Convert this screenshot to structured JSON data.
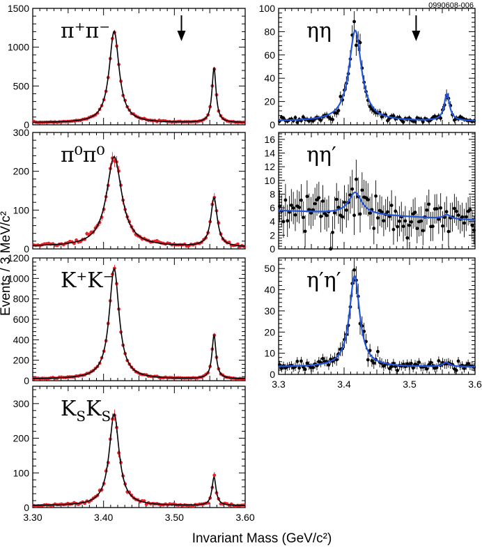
{
  "figure_id": "0990608-006",
  "xlabel": "Invariant Mass (GeV/c²)",
  "ylabel": "Events / 3 MeV/c²",
  "chart_data": [
    {
      "type": "scatter",
      "label": "π⁺π⁻",
      "xlim": [
        3.3,
        3.6
      ],
      "ylim": [
        0,
        1500
      ],
      "yticks": [
        0,
        500,
        1000,
        1500
      ],
      "xticks": [],
      "data_color": "#e8202a",
      "fit_color": "#000000",
      "arrow_x": 3.51,
      "peaks": [
        {
          "center": 3.415,
          "height": 1180,
          "width": 0.0085
        },
        {
          "center": 3.556,
          "height": 700,
          "width": 0.0035
        }
      ],
      "background": [
        25,
        25
      ]
    },
    {
      "type": "scatter",
      "label": "π⁰π⁰",
      "xlim": [
        3.3,
        3.6
      ],
      "ylim": [
        0,
        300
      ],
      "yticks": [
        0,
        100,
        200,
        300
      ],
      "xticks": [],
      "data_color": "#e8202a",
      "fit_color": "#000000",
      "peaks": [
        {
          "center": 3.415,
          "height": 232,
          "width": 0.013
        },
        {
          "center": 3.556,
          "height": 126,
          "width": 0.0055
        }
      ],
      "background": [
        6,
        4
      ]
    },
    {
      "type": "scatter",
      "label": "K⁺K⁻",
      "xlim": [
        3.3,
        3.6
      ],
      "ylim": [
        0,
        1200
      ],
      "yticks": [
        0,
        200,
        400,
        600,
        800,
        1000,
        1200
      ],
      "xticks": [],
      "data_color": "#e8202a",
      "fit_color": "#000000",
      "peaks": [
        {
          "center": 3.415,
          "height": 1080,
          "width": 0.0085
        },
        {
          "center": 3.556,
          "height": 425,
          "width": 0.0035
        }
      ],
      "background": [
        15,
        15
      ]
    },
    {
      "type": "scatter",
      "label": "KSKS",
      "label_main": "K",
      "label_sub": "S",
      "xlim": [
        3.3,
        3.6
      ],
      "ylim": [
        0,
        350
      ],
      "yticks": [
        0,
        100,
        200,
        300
      ],
      "xticks": [
        "3.30",
        "3.40",
        "3.50",
        "3.60"
      ],
      "data_color": "#e8202a",
      "fit_color": "#000000",
      "peaks": [
        {
          "center": 3.415,
          "height": 265,
          "width": 0.0085
        },
        {
          "center": 3.556,
          "height": 82,
          "width": 0.0035
        }
      ],
      "background": [
        5,
        5
      ]
    },
    {
      "type": "scatter",
      "label": "ηη",
      "xlim": [
        3.3,
        3.6
      ],
      "ylim": [
        0,
        100
      ],
      "yticks": [
        0,
        20,
        40,
        60,
        80,
        100
      ],
      "xticks": [],
      "data_color": "#000000",
      "fit_color": "#2255dd",
      "arrow_x": 3.51,
      "peaks": [
        {
          "center": 3.417,
          "height": 78,
          "width": 0.0115
        },
        {
          "center": 3.557,
          "height": 23,
          "width": 0.005
        }
      ],
      "background": [
        3,
        3
      ]
    },
    {
      "type": "scatter",
      "label": "ηη′",
      "xlim": [
        3.3,
        3.6
      ],
      "ylim": [
        0,
        17
      ],
      "yticks": [
        0,
        2,
        4,
        6,
        8,
        10,
        12,
        14,
        16
      ],
      "xticks": [],
      "data_color": "#000000",
      "fit_color": "#2255dd",
      "peaks": [
        {
          "center": 3.417,
          "height": 3.2,
          "width": 0.012
        },
        {
          "center": 3.557,
          "height": 0.6,
          "width": 0.006
        }
      ],
      "background": [
        5.6,
        4.2
      ]
    },
    {
      "type": "scatter",
      "label": "η′η′",
      "xlim": [
        3.3,
        3.6
      ],
      "ylim": [
        0,
        55
      ],
      "yticks": [
        0,
        10,
        20,
        30,
        40,
        50
      ],
      "xticks": [
        "3.3",
        "3.4",
        "3.5",
        "3.6"
      ],
      "data_color": "#000000",
      "fit_color": "#2255dd",
      "peaks": [
        {
          "center": 3.416,
          "height": 43,
          "width": 0.0095
        },
        {
          "center": 3.556,
          "height": 2.0,
          "width": 0.006
        }
      ],
      "background": [
        3.5,
        3.5
      ]
    }
  ]
}
